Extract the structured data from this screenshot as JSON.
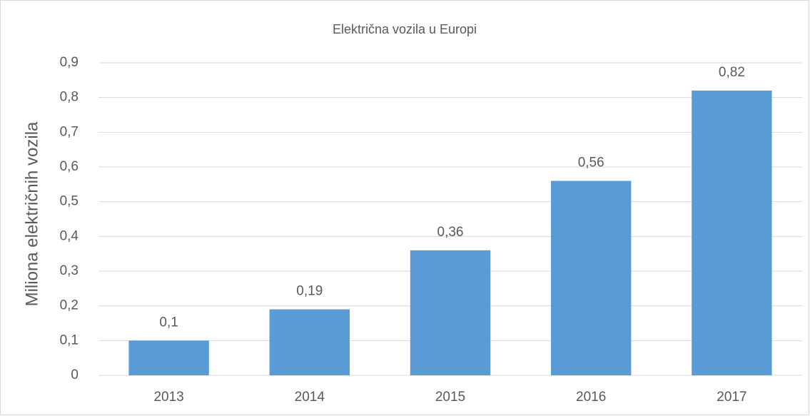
{
  "chart_data": {
    "type": "bar",
    "title": "Električna vozila u Europi",
    "y_label": "Miliona električnih vozila",
    "categories": [
      "2013",
      "2014",
      "2015",
      "2016",
      "2017"
    ],
    "values": [
      0.1,
      0.19,
      0.36,
      0.56,
      0.82
    ],
    "value_labels": [
      "0,1",
      "0,19",
      "0,36",
      "0,56",
      "0,82"
    ],
    "color": "#5b9bd5",
    "ylim": [
      0,
      0.9
    ],
    "yticks": [
      0,
      {
        "value": 0.1,
        "label": "0,1"
      },
      {
        "value": 0.2,
        "label": "0,2"
      },
      {
        "value": 0.3,
        "label": "0,3"
      },
      {
        "value": 0.4,
        "label": "0,4"
      },
      {
        "value": 0.5,
        "label": "0,5"
      },
      {
        "value": 0.6,
        "label": "0,6"
      },
      {
        "value": 0.7,
        "label": "0,7"
      },
      {
        "value": 0.8,
        "label": "0,8"
      },
      {
        "value": 0.9,
        "label": "0,9"
      }
    ],
    "grid": true
  }
}
